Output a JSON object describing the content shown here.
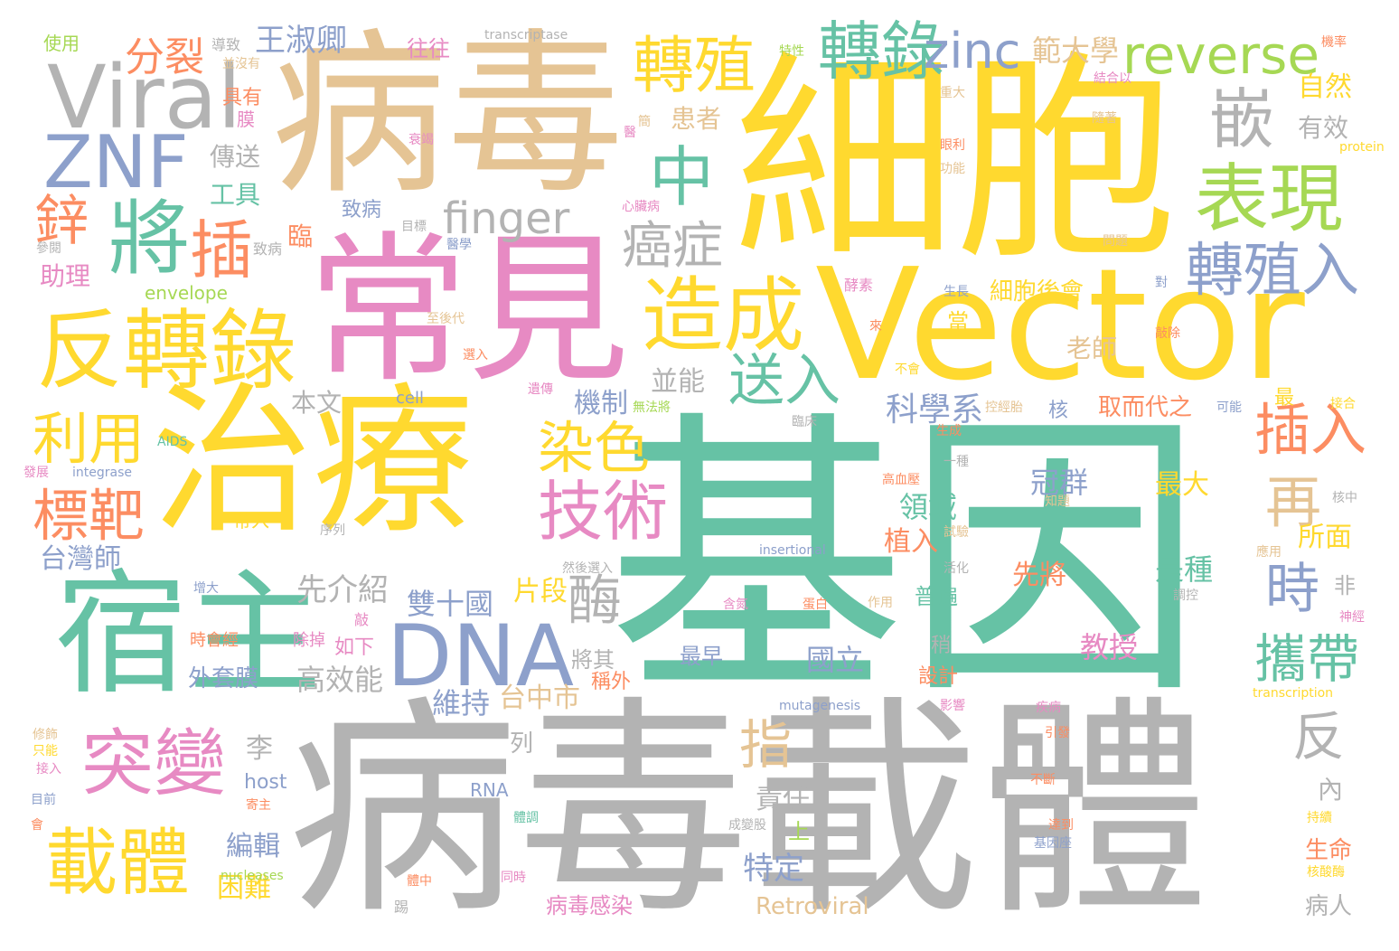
{
  "palette": [
    "#66c2a5",
    "#fc8d62",
    "#8da0cb",
    "#e78ac3",
    "#a6d854",
    "#ffd92f",
    "#e5c494",
    "#b3b3b3"
  ],
  "words": {
    "w_jiyin": "基因",
    "w_xibao": "細胞",
    "w_bingdu1": "病毒",
    "w_bingduzaiti": "病毒載體",
    "w_vector": "Vector",
    "w_changjian": "常見",
    "w_zhiliao": "治療",
    "w_suzhu": "宿主",
    "w_viral": "Viral",
    "w_znf": "ZNF",
    "w_dna": "DNA",
    "w_fanzhuanlu": "反轉錄",
    "w_jiang": "將",
    "w_cha": "插",
    "w_xin": "鋅",
    "w_zaocheng": "造成",
    "w_biaoxian": "表現",
    "w_zhuanzhiru": "轉殖入",
    "w_zhuanzhi": "轉殖",
    "w_zhuanlu": "轉錄",
    "w_zinc": "zinc",
    "w_reverse": "reverse",
    "w_qian": "嵌",
    "w_zhong": "中",
    "w_finger": "finger",
    "w_aizheng": "癌症",
    "w_songru": "送入",
    "w_jishu": "技術",
    "w_ranse": "染色",
    "w_liyong": "利用",
    "w_biaoba": "標靶",
    "w_zaiti": "載體",
    "w_tubian": "突變",
    "w_mei": "酶",
    "w_charu": "插入",
    "w_zai": "再",
    "w_shi": "時",
    "w_xiedai": "攜帶",
    "w_fan": "反",
    "w_zhi": "指",
    "w_fenlie": "分裂",
    "w_wangshuqing": "王淑卿",
    "w_fanwei": "範大學",
    "w_xibaohouhui": "細胞後會",
    "w_kexuexi": "科學系",
    "w_lingyu": "領域",
    "w_guanqun": "冠群",
    "w_zuida": "最大",
    "w_shizhong": "是種",
    "w_xianjiang": "先將",
    "w_suomian": "所面",
    "w_zhiru": "植入",
    "w_jiaoshou": "教授",
    "w_guoli": "國立",
    "w_taizhongshi": "台中市",
    "w_weichi": "維持",
    "w_shuangshiguo": "雙十國",
    "w_pianduan": "片段",
    "w_xianjieshao": "先介紹",
    "w_gaoxiaoneng": "高效能",
    "w_waitaomo": "外套膜",
    "w_jiangqi": "將其",
    "w_benwen": "本文",
    "w_jizhi": "機制",
    "w_bingneng": "並能",
    "w_laoshi": "老師",
    "w_huanzhe": "患者",
    "w_ziran": "自然",
    "w_youxiao": "有效",
    "w_hexin": "核",
    "w_quer": "取而代之",
    "w_zuichu": "最",
    "w_dang": "當",
    "w_chuansong": "傳送",
    "w_gongju": "工具",
    "w_lin": "臨",
    "w_zhubing": "致病",
    "w_zhuli": "助理",
    "w_envelope": "envelope",
    "w_taiwanshi": "台灣師",
    "w_xuanzhuo": "如下",
    "w_chuchu": "除掉",
    "w_shihuijing": "時會經",
    "w_li": "李",
    "w_host": "host",
    "w_bianji": "編輯",
    "w_kunnan": "困難",
    "w_teding": "特定",
    "w_zeren": "責任",
    "w_shang": "上",
    "w_retroviral": "Retroviral",
    "w_bingdu_ganran": "病毒感染",
    "w_shengming": "生命",
    "w_bingren": "病人",
    "w_nei": "內",
    "w_fei": "非",
    "w_shao": "稍",
    "w_sheji": "設計",
    "w_putong": "普遍",
    "w_chengwai": "稱外",
    "w_zuizao": "最早",
    "w_lie": "列",
    "w_rna": "RNA",
    "w_cell": "cell",
    "w_aids": "AIDS",
    "w_integrase": "integrase",
    "w_fazhan": "發展",
    "w_zhengqi": "增大",
    "w_insertional": "insertional",
    "w_mutagenesis": "mutagenesis",
    "w_transcription": "transcription",
    "w_nucleases": "nucleases",
    "w_transcriptase": "transcriptase",
    "w_protein": "protein",
    "w_shiyong": "使用",
    "w_daozhi": "導致",
    "w_bingmeiyou": "並沒有",
    "w_juyou": "具有",
    "w_mo": "膜",
    "w_wangwang": "往往",
    "w_texing": "特性",
    "w_jiehe": "結合以",
    "w_jilv": "機率",
    "w_zhongda": "重大",
    "w_shuaitui": "衰竭",
    "w_yi": "醫",
    "w_xinzang": "心臟病",
    "w_mubiao": "目標",
    "w_yixue": "醫學",
    "w_wenti": "問題",
    "w_jiasu": "酵素",
    "w_shengzhang": "生長",
    "w_dui": "對",
    "w_buhui": "不會",
    "w_zhiyi": "至後代",
    "w_xuanru": "選入",
    "w_yichuan": "遺傳",
    "w_wufa": "無法將",
    "w_kongjing": "控經胎",
    "w_keneng": "可能",
    "w_jiehe2": "接合",
    "w_linchuang": "臨床",
    "w_shengcheng": "生成",
    "w_yizhong": "一種",
    "w_gaoxueya": "高血壓",
    "w_zhiti": "知題",
    "w_hezhong": "核中",
    "w_shiyan": "試驗",
    "w_yingyong": "應用",
    "w_huohua": "活化",
    "w_daiju": "帶入",
    "w_xulie": "序列",
    "w_ranhou": "然後選入",
    "w_hanlin": "含氮",
    "w_danbai": "蛋白",
    "w_zuoyong": "作用",
    "w_tiaokong": "調控",
    "w_shenjing": "神經",
    "w_diao": "敲",
    "w_yingxiang": "影響",
    "w_jibing": "疾病",
    "w_yinfa": "引發",
    "w_buduan": "不斷",
    "w_dadao": "達到",
    "w_jiyinzuo": "基因座",
    "w_chixu": "持續",
    "w_hetang": "核酸酶",
    "w_tongshi": "同時",
    "w_tizhong": "體中",
    "w_titong": "體調",
    "w_chengfeng": "成變股",
    "w_xiushi": "修飾",
    "w_zhineng": "只能",
    "w_jieru": "接入",
    "w_muqian": "目前",
    "w_hui": "會",
    "w_jizhu": "寄主",
    "w_ti": "踢",
    "w_canjian": "參閱",
    "w_zhenchu": "敲除",
    "w_lai": "來",
    "w_gongneng": "功能",
    "w_yanli": "眼利",
    "w_jianhua": "簡",
    "w_suizhe": "隨著",
    "w_zhimai": "致病"
  }
}
